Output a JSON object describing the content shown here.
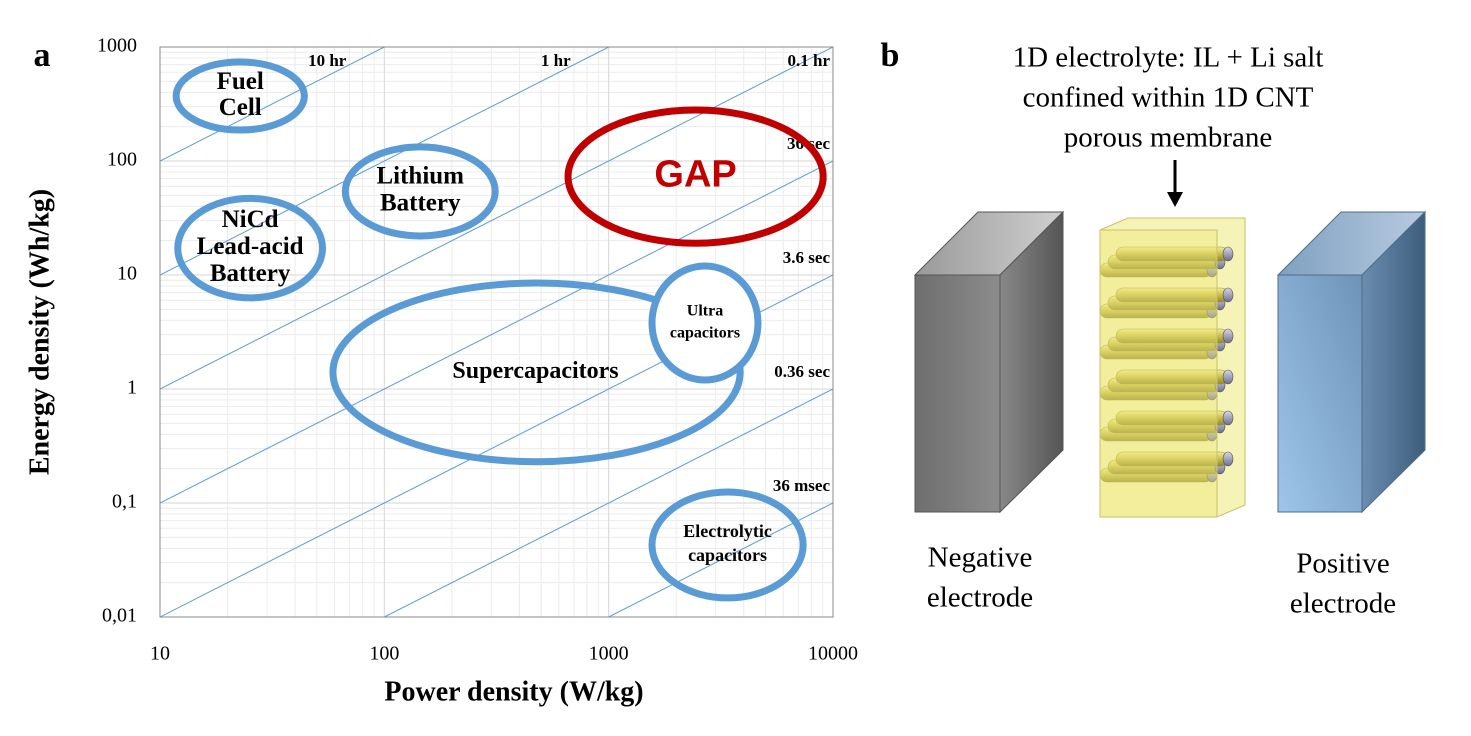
{
  "chart_data": {
    "type": "region-ellipse",
    "panel_label": "a",
    "xlabel": "Power density (W/kg)",
    "ylabel": "Energy density (Wh/kg)",
    "xscale": "log",
    "yscale": "log",
    "grid": true,
    "xlim": [
      10,
      10000
    ],
    "ylim": [
      0.01,
      1000
    ],
    "xticks": [
      10,
      100,
      1000,
      10000
    ],
    "yticks": [
      {
        "value": 0.01,
        "label": "0,01"
      },
      {
        "value": 0.1,
        "label": "0,1"
      },
      1,
      10,
      100,
      1000
    ],
    "time_lines": [
      {
        "label": "10 hr",
        "hours": 10
      },
      {
        "label": "1 hr",
        "hours": 1
      },
      {
        "label": "0.1 hr",
        "hours": 0.1
      },
      {
        "label": "36 sec",
        "hours": 0.01
      },
      {
        "label": "3.6 sec",
        "hours": 0.001
      },
      {
        "label": "0.36 sec",
        "hours": 0.0001
      },
      {
        "label": "36 msec",
        "hours": 1e-05
      }
    ],
    "time_line_color": "#5b9bd5",
    "regions": [
      {
        "label_lines": [
          "Fuel",
          "Cell"
        ],
        "x_range": [
          11.8,
          44
        ],
        "y_range": [
          187,
          738
        ],
        "color": "#5b9bd5"
      },
      {
        "label_lines": [
          "Lithium",
          "Battery"
        ],
        "x_range": [
          67,
          312
        ],
        "y_range": [
          22,
          133
        ],
        "color": "#5b9bd5"
      },
      {
        "label_lines": [
          "NiCd",
          "Lead-acid",
          "Battery"
        ],
        "x_range": [
          12,
          53
        ],
        "y_range": [
          6.3,
          47
        ],
        "color": "#5b9bd5"
      },
      {
        "label_lines": [
          "GAP"
        ],
        "x_range": [
          659,
          9040
        ],
        "y_range": [
          19,
          280
        ],
        "color": "#c00000",
        "label_color": "#c00000"
      },
      {
        "label_lines": [
          "Supercapacitors"
        ],
        "x_range": [
          59,
          3855
        ],
        "y_range": [
          0.23,
          8.5
        ],
        "color": "#5b9bd5"
      },
      {
        "label_lines": [
          "Ultra",
          "capacitors"
        ],
        "x_range": [
          1560,
          4630
        ],
        "y_range": [
          1.2,
          12
        ],
        "color": "#5b9bd5"
      },
      {
        "label_lines": [
          "Electrolytic",
          "capacitors"
        ],
        "x_range": [
          1560,
          7360
        ],
        "y_range": [
          0.0147,
          0.125
        ],
        "color": "#5b9bd5"
      }
    ]
  },
  "diagram": {
    "panel_label": "b",
    "caption_lines": [
      "1D electrolyte: IL + Li salt",
      "confined within 1D CNT",
      "porous membrane"
    ],
    "negative_label_lines": [
      "Negative",
      "electrode"
    ],
    "positive_label_lines": [
      "Positive",
      "electrode"
    ]
  }
}
